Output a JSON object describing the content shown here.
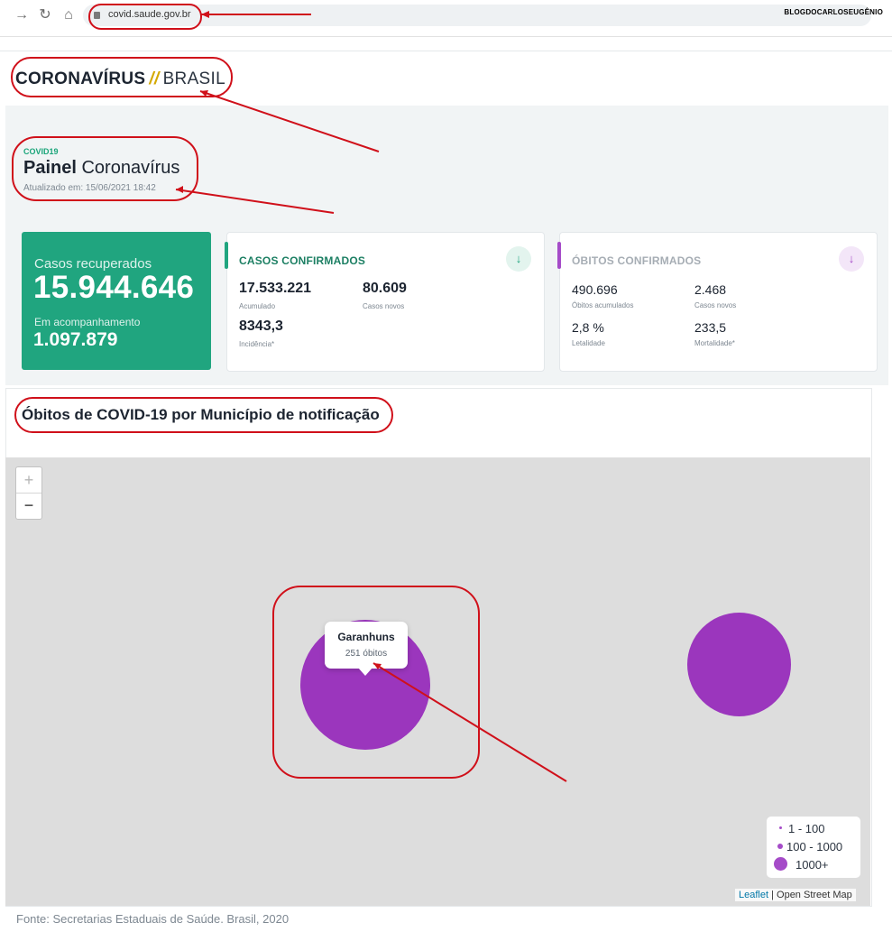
{
  "browser": {
    "url": "covid.saude.gov.br",
    "watermark": "BLOGDOCARLOSEUGÊNIO"
  },
  "site": {
    "logo_bold": "CORONAVÍRUS",
    "logo_separator": "//",
    "logo_light": "BRASIL"
  },
  "header": {
    "tag": "COVID19",
    "title_bold": "Painel",
    "title_rest": "Coronavírus",
    "updated": "Atualizado em: 15/06/2021 18:42"
  },
  "recovered": {
    "label": "Casos recuperados",
    "value": "15.944.646",
    "follow_label": "Em acompanhamento",
    "follow_value": "1.097.879"
  },
  "cases": {
    "title": "CASOS CONFIRMADOS",
    "accumulated": "17.533.221",
    "accumulated_label": "Acumulado",
    "new": "80.609",
    "new_label": "Casos novos",
    "incidence": "8343,3",
    "incidence_label": "Incidência*",
    "accent": "#20a57f"
  },
  "deaths": {
    "title": "ÓBITOS CONFIRMADOS",
    "accumulated": "490.696",
    "accumulated_label": "Óbitos acumulados",
    "new": "2.468",
    "new_label": "Casos novos",
    "lethality": "2,8 %",
    "lethality_label": "Letalidade",
    "mortality": "233,5",
    "mortality_label": "Mortalidade*",
    "accent": "#a54bc8"
  },
  "map": {
    "title": "Óbitos de COVID-19 por Município de notificação",
    "zoom_in": "+",
    "zoom_out": "−",
    "popup_name": "Garanhuns",
    "popup_count": "251 óbitos",
    "legend": [
      "1 - 100",
      "100 - 1000",
      "1000+"
    ],
    "attribution_leaflet": "Leaflet",
    "attribution_sep": "|",
    "attribution_osm": "Open Street Map",
    "bubble_color": "#9b36bd"
  },
  "footer": {
    "source": "Fonte: Secretarias Estaduais de Saúde. Brasil, 2020"
  },
  "icons": {
    "back": "arrow-right-icon",
    "reload": "reload-icon",
    "home": "home-icon",
    "cases_arrow": "arrow-down-icon",
    "deaths_arrow": "arrow-down-icon"
  }
}
